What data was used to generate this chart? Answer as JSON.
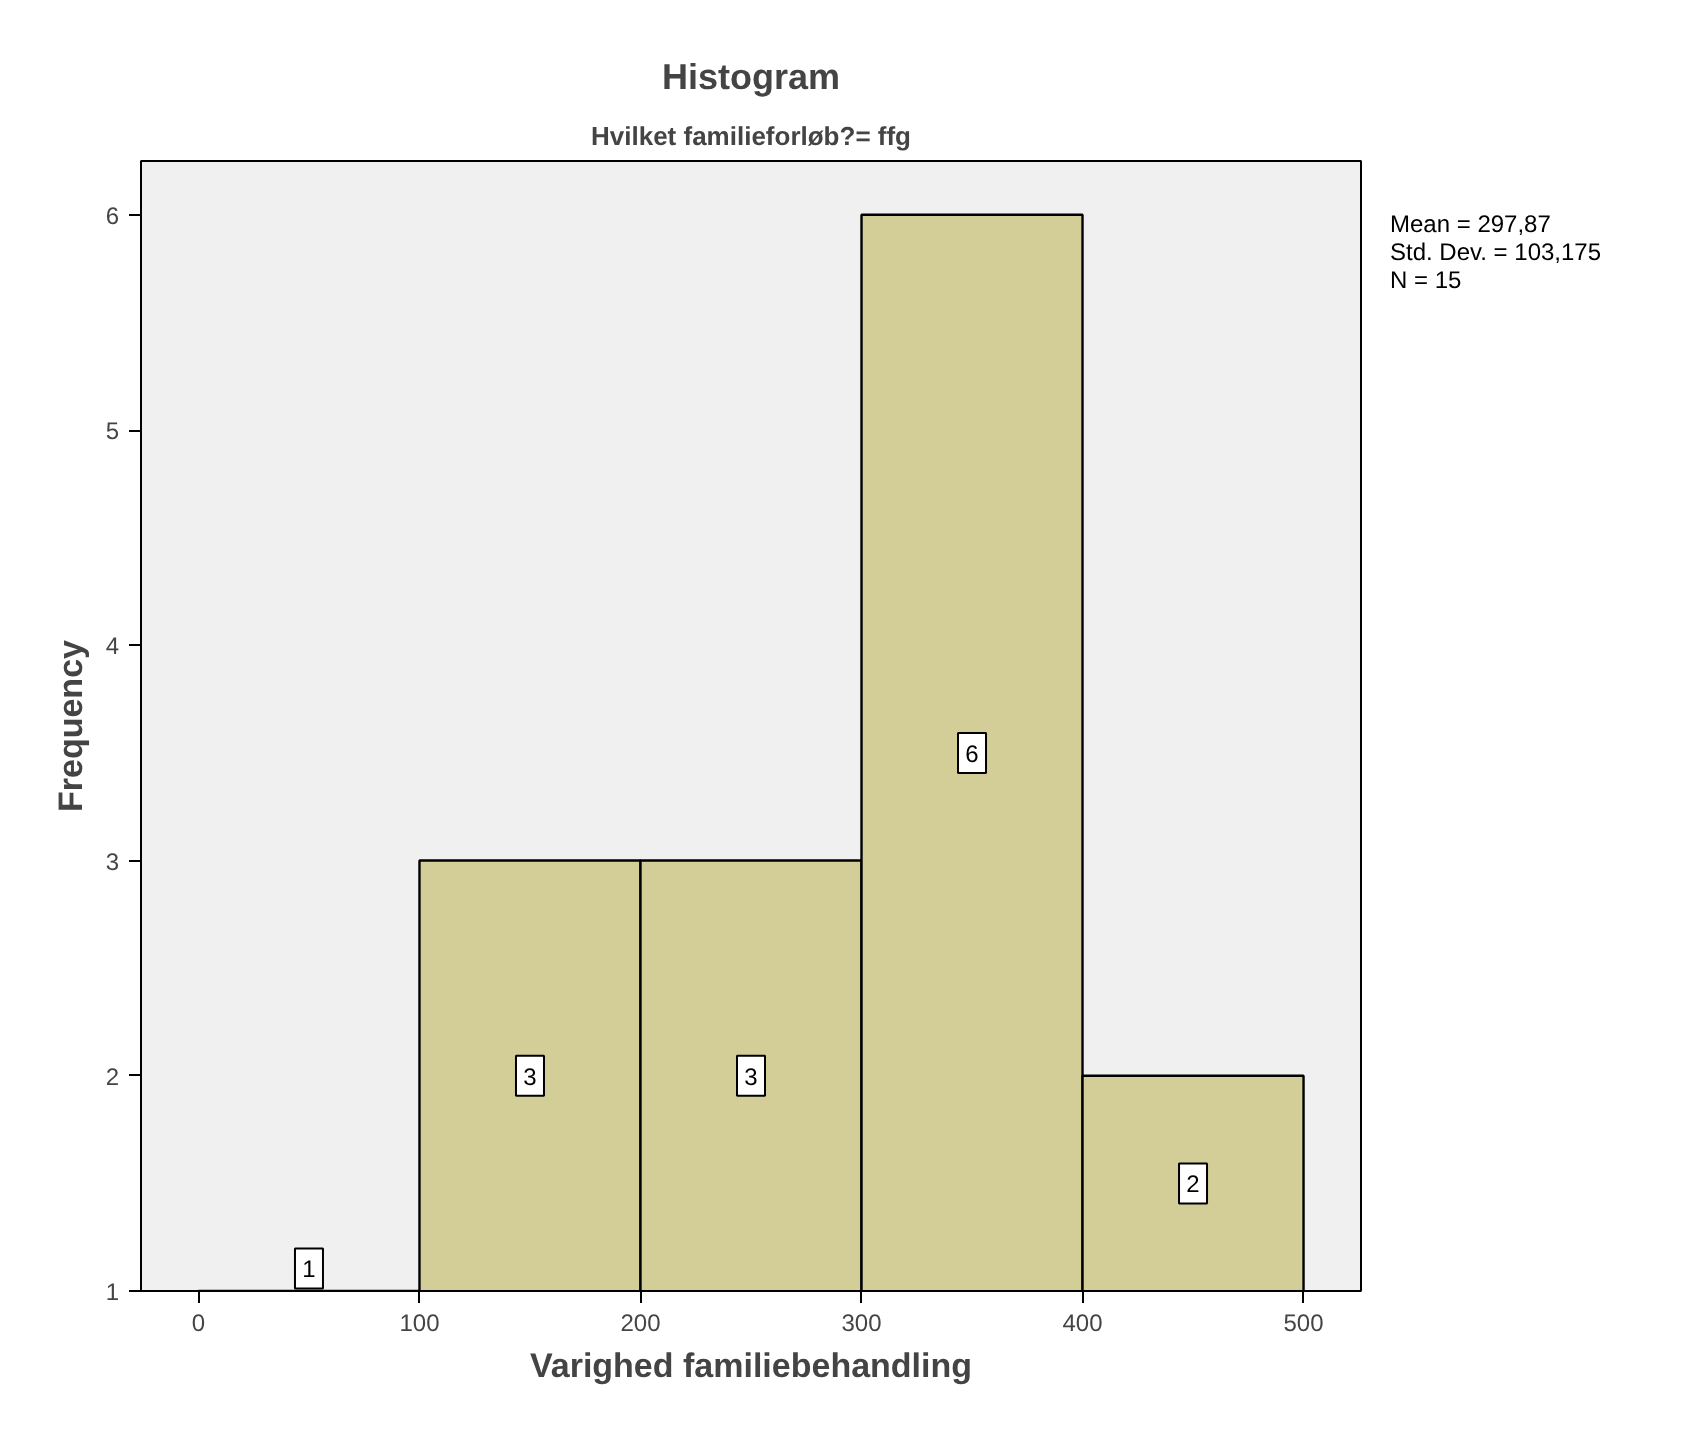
{
  "chart_data": {
    "type": "histogram",
    "title": "Histogram",
    "subtitle": "Hvilket familieforløb?= ffg",
    "xlabel": "Varighed familiebehandling",
    "ylabel": "Frequency",
    "bins": [
      0,
      100,
      200,
      300,
      400,
      500
    ],
    "values": [
      1,
      3,
      3,
      6,
      2
    ],
    "color": "#d3ce97",
    "xlim": [
      -26,
      526
    ],
    "ylim": [
      1,
      6.25
    ],
    "xticks": [
      0,
      100,
      200,
      300,
      400,
      500
    ],
    "yticks": [
      1,
      2,
      3,
      4,
      5,
      6
    ],
    "data_labels": true,
    "grid": false,
    "annotations": [
      "Mean = 297,87",
      "Std. Dev. = 103,175",
      "N = 15"
    ]
  }
}
